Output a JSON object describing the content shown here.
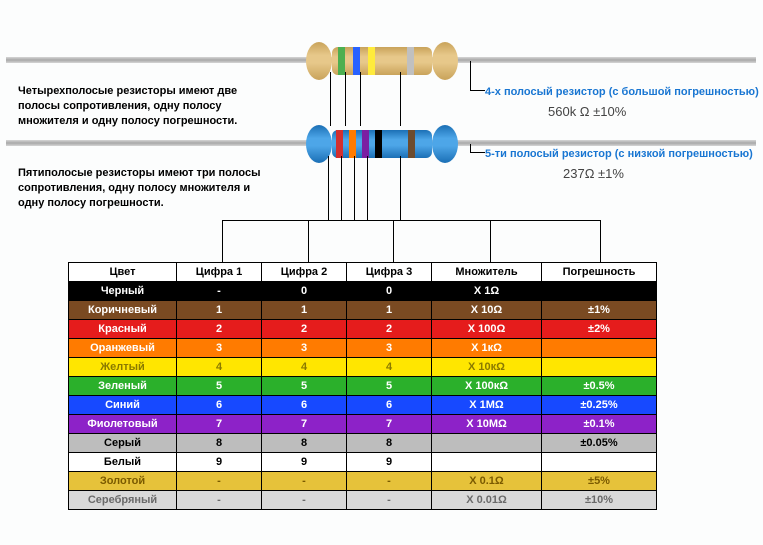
{
  "resistor4": {
    "description": "Четырехполосые резисторы имеют две полосы сопротивления, одну полосу множителя и одну полосу погрешности.",
    "title": "4-х полосый резистор (с большой погрешностью)",
    "title_color": "#1976d2",
    "value": "560k Ω ±10%",
    "body_color_light": "#e7c88a",
    "body_color_dark": "#c9a35a",
    "bands": [
      {
        "color": "#4caf50"
      },
      {
        "color": "#2962ff"
      },
      {
        "color": "#ffeb3b"
      },
      {
        "color": "#c0c0c0"
      }
    ]
  },
  "resistor5": {
    "description": "Пятиполосые резисторы имеют три полосы сопротивления, одну полосу множителя и одну полосу погрешности.",
    "title": "5-ти полосый резистор (с низкой погрешностью)",
    "title_color": "#1976d2",
    "value": "237Ω ±1%",
    "body_color_light": "#4da6e8",
    "body_color_dark": "#1b6fb5",
    "bands": [
      {
        "color": "#d32f2f"
      },
      {
        "color": "#ff7b00"
      },
      {
        "color": "#7b1fa2"
      },
      {
        "color": "#000000"
      },
      {
        "color": "#6d4c2f"
      }
    ]
  },
  "table": {
    "headers": [
      "Цвет",
      "Цифра 1",
      "Цифра 2",
      "Цифра 3",
      "Множитель",
      "Погрешность"
    ],
    "rows": [
      {
        "name": "Черный",
        "bg": "#000000",
        "fg": "#ffffff",
        "d1": "-",
        "d2": "0",
        "d3": "0",
        "mult": "X 1Ω",
        "tol": ""
      },
      {
        "name": "Коричневый",
        "bg": "#7a4a22",
        "fg": "#ffffff",
        "d1": "1",
        "d2": "1",
        "d3": "1",
        "mult": "X 10Ω",
        "tol": "±1%"
      },
      {
        "name": "Красный",
        "bg": "#e51c1c",
        "fg": "#ffffff",
        "d1": "2",
        "d2": "2",
        "d3": "2",
        "mult": "X 100Ω",
        "tol": "±2%"
      },
      {
        "name": "Оранжевый",
        "bg": "#ff7b00",
        "fg": "#ffffff",
        "d1": "3",
        "d2": "3",
        "d3": "3",
        "mult": "X 1кΩ",
        "tol": ""
      },
      {
        "name": "Желтый",
        "bg": "#ffe600",
        "fg": "#8a7a00",
        "d1": "4",
        "d2": "4",
        "d3": "4",
        "mult": "X 10кΩ",
        "tol": ""
      },
      {
        "name": "Зеленый",
        "bg": "#2bb02b",
        "fg": "#ffffff",
        "d1": "5",
        "d2": "5",
        "d3": "5",
        "mult": "X 100кΩ",
        "tol": "±0.5%"
      },
      {
        "name": "Синий",
        "bg": "#1749ff",
        "fg": "#ffffff",
        "d1": "6",
        "d2": "6",
        "d3": "6",
        "mult": "X 1MΩ",
        "tol": "±0.25%"
      },
      {
        "name": "Фиолетовый",
        "bg": "#8d22c8",
        "fg": "#ffffff",
        "d1": "7",
        "d2": "7",
        "d3": "7",
        "mult": "X 10MΩ",
        "tol": "±0.1%"
      },
      {
        "name": "Серый",
        "bg": "#bdbdbd",
        "fg": "#000000",
        "d1": "8",
        "d2": "8",
        "d3": "8",
        "mult": "",
        "tol": "±0.05%"
      },
      {
        "name": "Белый",
        "bg": "#ffffff",
        "fg": "#000000",
        "d1": "9",
        "d2": "9",
        "d3": "9",
        "mult": "",
        "tol": ""
      },
      {
        "name": "Золотой",
        "bg": "#e6c23a",
        "fg": "#7a5a00",
        "d1": "-",
        "d2": "-",
        "d3": "-",
        "mult": "X 0.1Ω",
        "tol": "±5%"
      },
      {
        "name": "Серебряный",
        "bg": "#d9d9d9",
        "fg": "#6a6a6a",
        "d1": "-",
        "d2": "-",
        "d3": "-",
        "mult": "X 0.01Ω",
        "tol": "±10%"
      }
    ]
  }
}
